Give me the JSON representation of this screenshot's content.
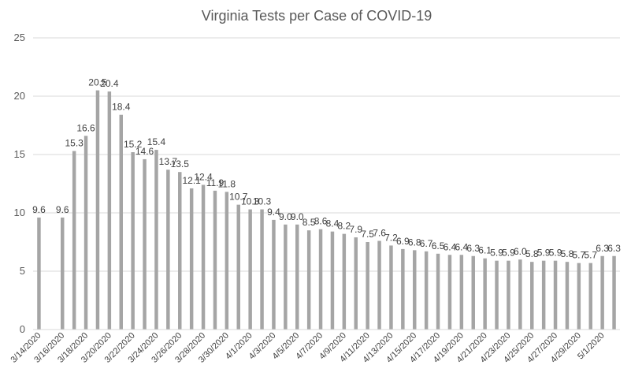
{
  "chart_data": {
    "type": "bar",
    "title": "Virginia Tests per Case of COVID-19",
    "xlabel": "",
    "ylabel": "",
    "ylim": [
      0,
      25
    ],
    "yticks": [
      0,
      5,
      10,
      15,
      20,
      25
    ],
    "grid": true,
    "legend": "none",
    "bar_color": "#a5a5a5",
    "grid_color": "#d9d9d9",
    "categories": [
      "3/14/2020",
      "3/15/2020",
      "3/16/2020",
      "3/17/2020",
      "3/18/2020",
      "3/19/2020",
      "3/20/2020",
      "3/21/2020",
      "3/22/2020",
      "3/23/2020",
      "3/24/2020",
      "3/25/2020",
      "3/26/2020",
      "3/27/2020",
      "3/28/2020",
      "3/29/2020",
      "3/30/2020",
      "3/31/2020",
      "4/1/2020",
      "4/2/2020",
      "4/3/2020",
      "4/4/2020",
      "4/5/2020",
      "4/6/2020",
      "4/7/2020",
      "4/8/2020",
      "4/9/2020",
      "4/10/2020",
      "4/11/2020",
      "4/12/2020",
      "4/13/2020",
      "4/14/2020",
      "4/15/2020",
      "4/16/2020",
      "4/17/2020",
      "4/18/2020",
      "4/19/2020",
      "4/20/2020",
      "4/21/2020",
      "4/22/2020",
      "4/23/2020",
      "4/24/2020",
      "4/25/2020",
      "4/26/2020",
      "4/27/2020",
      "4/28/2020",
      "4/29/2020",
      "4/30/2020",
      "5/1/2020",
      "5/2/2020"
    ],
    "values": [
      9.6,
      null,
      9.6,
      15.3,
      16.6,
      20.5,
      20.4,
      18.4,
      15.2,
      14.6,
      15.4,
      13.7,
      13.5,
      12.1,
      12.4,
      11.9,
      11.8,
      10.7,
      10.3,
      10.3,
      9.4,
      9.0,
      9.0,
      8.5,
      8.6,
      8.4,
      8.2,
      7.9,
      7.5,
      7.6,
      7.2,
      6.9,
      6.8,
      6.7,
      6.5,
      6.4,
      6.4,
      6.3,
      6.1,
      5.9,
      5.9,
      6.0,
      5.8,
      5.9,
      5.9,
      5.8,
      5.7,
      5.7,
      6.3,
      6.3
    ],
    "data_labels": [
      "9.6",
      "",
      "9.6",
      "15.3",
      "16.6",
      "20.5",
      "20.4",
      "18.4",
      "15.2",
      "14.6",
      "15.4",
      "13.7",
      "13.5",
      "12.1",
      "12.4",
      "11.9",
      "11.8",
      "10.7",
      "10.3",
      "10.3",
      "9.4",
      "9.0",
      "9.0",
      "8.5",
      "8.6",
      "8.4",
      "8.2",
      "7.9",
      "7.5",
      "7.6",
      "7.2",
      "6.9",
      "6.8",
      "6.7",
      "6.5",
      "6.4",
      "6.4",
      "6.3",
      "6.1",
      "5.9",
      "5.9",
      "6.0",
      "5.8",
      "5.9",
      "5.9",
      "5.8",
      "5.7",
      "5.7",
      "6.3",
      "6.3"
    ],
    "xtick_labels": [
      "3/14/2020",
      "3/16/2020",
      "3/18/2020",
      "3/20/2020",
      "3/22/2020",
      "3/24/2020",
      "3/26/2020",
      "3/28/2020",
      "3/30/2020",
      "4/1/2020",
      "4/3/2020",
      "4/5/2020",
      "4/7/2020",
      "4/9/2020",
      "4/11/2020",
      "4/13/2020",
      "4/15/2020",
      "4/17/2020",
      "4/19/2020",
      "4/21/2020",
      "4/23/2020",
      "4/25/2020",
      "4/27/2020",
      "4/29/2020",
      "5/1/2020"
    ]
  }
}
